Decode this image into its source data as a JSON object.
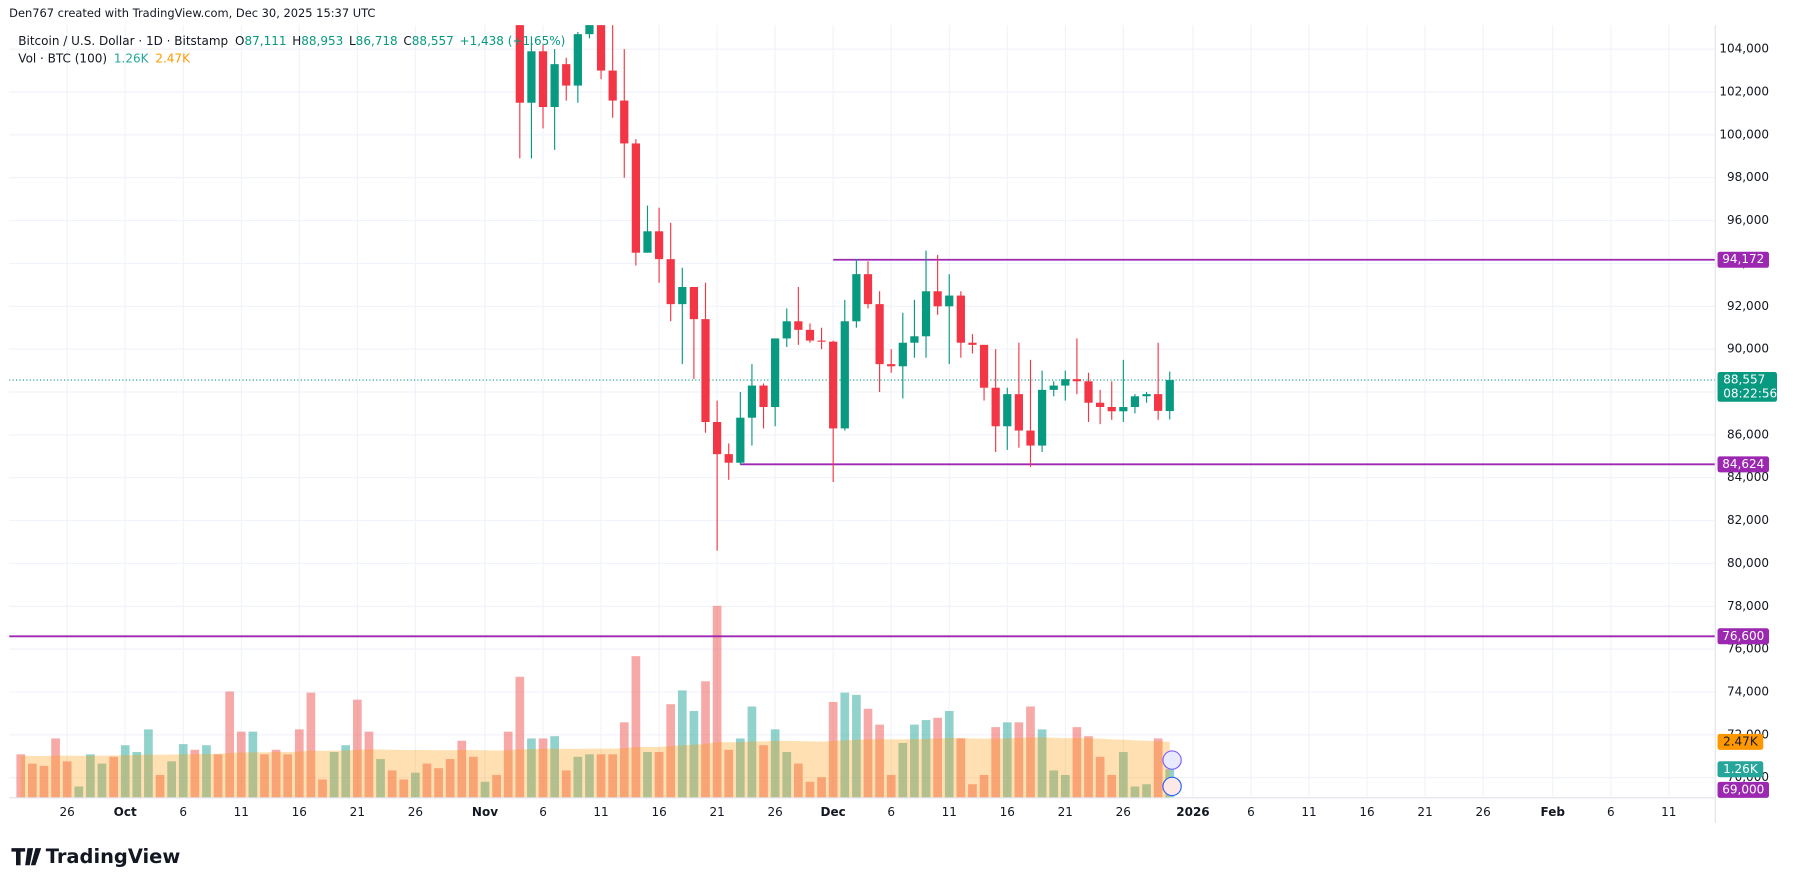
{
  "header": {
    "attribution": "Den767 created with TradingView.com, Dec 30, 2025 15:37 UTC",
    "symbol": "Bitcoin / U.S. Dollar · 1D · Bitstamp",
    "ohlc": [
      {
        "letter": "O",
        "value": "87,111"
      },
      {
        "letter": "H",
        "value": "88,953"
      },
      {
        "letter": "L",
        "value": "86,718"
      },
      {
        "letter": "C",
        "value": "88,557"
      }
    ],
    "change": "+1,438 (+1.65%)"
  },
  "chart_data": {
    "type": "candlestick",
    "up_color": "#089981",
    "down_color": "#f23645",
    "x": [
      "2025-11-04",
      "2025-11-05",
      "2025-11-06",
      "2025-11-07",
      "2025-11-08",
      "2025-11-09",
      "2025-11-10",
      "2025-11-11",
      "2025-11-12",
      "2025-11-13",
      "2025-11-14",
      "2025-11-15",
      "2025-11-16",
      "2025-11-17",
      "2025-11-18",
      "2025-11-19",
      "2025-11-20",
      "2025-11-21",
      "2025-11-22",
      "2025-11-23",
      "2025-11-24",
      "2025-11-25",
      "2025-11-26",
      "2025-11-27",
      "2025-11-28",
      "2025-11-29",
      "2025-11-30",
      "2025-12-01",
      "2025-12-02",
      "2025-12-03",
      "2025-12-04",
      "2025-12-05",
      "2025-12-06",
      "2025-12-07",
      "2025-12-08",
      "2025-12-09",
      "2025-12-10",
      "2025-12-11",
      "2025-12-12",
      "2025-12-13",
      "2025-12-14",
      "2025-12-15",
      "2025-12-16",
      "2025-12-17",
      "2025-12-18",
      "2025-12-19",
      "2025-12-20",
      "2025-12-21",
      "2025-12-22",
      "2025-12-23",
      "2025-12-24",
      "2025-12-25",
      "2025-12-26",
      "2025-12-27",
      "2025-12-28",
      "2025-12-29",
      "2025-12-30"
    ],
    "open": [
      106500,
      101500,
      103900,
      101300,
      103300,
      102300,
      104700,
      106000,
      103000,
      101600,
      99600,
      94500,
      95500,
      94200,
      92100,
      92900,
      91400,
      86600,
      85100,
      84700,
      86800,
      88300,
      87300,
      90500,
      91300,
      90900,
      90400,
      90350,
      86300,
      91300,
      93500,
      92100,
      89300,
      89200,
      90300,
      90600,
      92700,
      92000,
      92500,
      90300,
      90200,
      88200,
      86400,
      87900,
      86200,
      85500,
      88100,
      88300,
      88600,
      88500,
      87500,
      87300,
      87100,
      87300,
      87800,
      87900,
      87111
    ],
    "high": [
      106600,
      104600,
      104200,
      104000,
      103600,
      104800,
      106600,
      107000,
      105300,
      104000,
      99800,
      96700,
      96600,
      95900,
      93800,
      92900,
      93100,
      87600,
      85600,
      88000,
      89300,
      88400,
      90500,
      91900,
      92900,
      91200,
      91000,
      90400,
      92300,
      94200,
      94100,
      92700,
      90000,
      91700,
      92300,
      94600,
      94400,
      93500,
      92700,
      90700,
      90200,
      90000,
      88200,
      90300,
      89500,
      89000,
      88500,
      89000,
      90500,
      88900,
      88100,
      88500,
      89500,
      87900,
      88000,
      90300,
      88953
    ],
    "low": [
      98900,
      98900,
      100300,
      99300,
      101600,
      101500,
      104500,
      102600,
      100800,
      98000,
      93900,
      94500,
      93100,
      91300,
      89300,
      88600,
      86100,
      80600,
      83900,
      84600,
      85500,
      86300,
      86400,
      90100,
      90200,
      90300,
      90000,
      83800,
      86200,
      91000,
      91900,
      88000,
      88900,
      87700,
      89600,
      89600,
      91600,
      89300,
      89600,
      89800,
      87600,
      85200,
      85300,
      85400,
      84500,
      85200,
      87800,
      87600,
      87900,
      86600,
      86500,
      86700,
      86600,
      87000,
      87500,
      86700,
      86718
    ],
    "close": [
      101500,
      103900,
      101300,
      103300,
      102300,
      104700,
      106000,
      103000,
      101600,
      99600,
      94500,
      95500,
      94200,
      92100,
      92900,
      91400,
      86600,
      85100,
      84700,
      86800,
      88300,
      87300,
      90500,
      91300,
      90900,
      90400,
      90350,
      86300,
      91300,
      93500,
      92100,
      89300,
      89200,
      90300,
      90600,
      92700,
      92000,
      92500,
      90300,
      90200,
      88200,
      86400,
      87900,
      86200,
      85500,
      88100,
      88300,
      88600,
      88500,
      87500,
      87300,
      87100,
      87300,
      87800,
      87900,
      87119,
      88557
    ],
    "ylim": [
      69060,
      105120
    ],
    "yticks": [
      {
        "value": 70000,
        "label": "70,000"
      },
      {
        "value": 72000,
        "label": "72,000"
      },
      {
        "value": 74000,
        "label": "74,000"
      },
      {
        "value": 76000,
        "label": "76,000"
      },
      {
        "value": 78000,
        "label": "78,000"
      },
      {
        "value": 80000,
        "label": "80,000"
      },
      {
        "value": 82000,
        "label": "82,000"
      },
      {
        "value": 84000,
        "label": "84,000"
      },
      {
        "value": 86000,
        "label": "86,000"
      },
      {
        "value": 88000,
        "label": "88,000"
      },
      {
        "value": 90000,
        "label": "90,000"
      },
      {
        "value": 92000,
        "label": "92,000"
      },
      {
        "value": 94000,
        "label": "94,000"
      },
      {
        "value": 96000,
        "label": "96,000"
      },
      {
        "value": 98000,
        "label": "98,000"
      },
      {
        "value": 100000,
        "label": "100,000"
      },
      {
        "value": 102000,
        "label": "102,000"
      },
      {
        "value": 104000,
        "label": "104,000"
      }
    ],
    "xlim": [
      "2025-09-21",
      "2026-02-15"
    ],
    "xticks": [
      {
        "value": "2025-09-26",
        "label": "26"
      },
      {
        "value": "2025-10-01",
        "label": "Oct"
      },
      {
        "value": "2025-10-06",
        "label": "6"
      },
      {
        "value": "2025-10-11",
        "label": "11"
      },
      {
        "value": "2025-10-16",
        "label": "16"
      },
      {
        "value": "2025-10-21",
        "label": "21"
      },
      {
        "value": "2025-10-26",
        "label": "26"
      },
      {
        "value": "2025-11-01",
        "label": "Nov"
      },
      {
        "value": "2025-11-06",
        "label": "6"
      },
      {
        "value": "2025-11-11",
        "label": "11"
      },
      {
        "value": "2025-11-16",
        "label": "16"
      },
      {
        "value": "2025-11-21",
        "label": "21"
      },
      {
        "value": "2025-11-26",
        "label": "26"
      },
      {
        "value": "2025-12-01",
        "label": "Dec"
      },
      {
        "value": "2025-12-06",
        "label": "6"
      },
      {
        "value": "2025-12-11",
        "label": "11"
      },
      {
        "value": "2025-12-16",
        "label": "16"
      },
      {
        "value": "2025-12-21",
        "label": "21"
      },
      {
        "value": "2025-12-26",
        "label": "26"
      },
      {
        "value": "2026-01-01",
        "label": "2026"
      },
      {
        "value": "2026-01-06",
        "label": "6"
      },
      {
        "value": "2026-01-11",
        "label": "11"
      },
      {
        "value": "2026-01-16",
        "label": "16"
      },
      {
        "value": "2026-01-21",
        "label": "21"
      },
      {
        "value": "2026-01-26",
        "label": "26"
      },
      {
        "value": "2026-02-01",
        "label": "Feb"
      },
      {
        "value": "2026-02-06",
        "label": "6"
      },
      {
        "value": "2026-02-11",
        "label": "11"
      }
    ],
    "grid": true,
    "levels": [
      {
        "value": 94172,
        "label": "94,172",
        "from": "2025-12-01",
        "color": "#9c27b0"
      },
      {
        "value": 84624,
        "label": "84,624",
        "from": "2025-11-23",
        "color": "#9c27b0"
      },
      {
        "value": 76600,
        "label": "76,600",
        "from": "2025-09-21",
        "color": "#9c27b0"
      },
      {
        "value": 69000,
        "label": "69,000",
        "from": "2025-09-21",
        "color": "#9c27b0"
      }
    ],
    "last_price": {
      "value": 88557,
      "label": "88,557",
      "countdown": "08:22:56",
      "color": "#089981"
    },
    "volume": {
      "name": "Vol · BTC (100)",
      "value_label": "1.26K",
      "x": [
        "2025-09-22",
        "2025-09-23",
        "2025-09-24",
        "2025-09-25",
        "2025-09-26",
        "2025-09-27",
        "2025-09-28",
        "2025-09-29",
        "2025-09-30",
        "2025-10-01",
        "2025-10-02",
        "2025-10-03",
        "2025-10-04",
        "2025-10-05",
        "2025-10-06",
        "2025-10-07",
        "2025-10-08",
        "2025-10-09",
        "2025-10-10",
        "2025-10-11",
        "2025-10-12",
        "2025-10-13",
        "2025-10-14",
        "2025-10-15",
        "2025-10-16",
        "2025-10-17",
        "2025-10-18",
        "2025-10-19",
        "2025-10-20",
        "2025-10-21",
        "2025-10-22",
        "2025-10-23",
        "2025-10-24",
        "2025-10-25",
        "2025-10-26",
        "2025-10-27",
        "2025-10-28",
        "2025-10-29",
        "2025-10-30",
        "2025-10-31",
        "2025-11-01",
        "2025-11-02",
        "2025-11-03",
        "2025-11-04",
        "2025-11-05",
        "2025-11-06",
        "2025-11-07",
        "2025-11-08",
        "2025-11-09",
        "2025-11-10",
        "2025-11-11",
        "2025-11-12",
        "2025-11-13",
        "2025-11-14",
        "2025-11-15",
        "2025-11-16",
        "2025-11-17",
        "2025-11-18",
        "2025-11-19",
        "2025-11-20",
        "2025-11-21",
        "2025-11-22",
        "2025-11-23",
        "2025-11-24",
        "2025-11-25",
        "2025-11-26",
        "2025-11-27",
        "2025-11-28",
        "2025-11-29",
        "2025-11-30",
        "2025-12-01",
        "2025-12-02",
        "2025-12-03",
        "2025-12-04",
        "2025-12-05",
        "2025-12-06",
        "2025-12-07",
        "2025-12-08",
        "2025-12-09",
        "2025-12-10",
        "2025-12-11",
        "2025-12-12",
        "2025-12-13",
        "2025-12-14",
        "2025-12-15",
        "2025-12-16",
        "2025-12-17",
        "2025-12-18",
        "2025-12-19",
        "2025-12-20",
        "2025-12-21",
        "2025-12-22",
        "2025-12-23",
        "2025-12-24",
        "2025-12-25",
        "2025-12-26",
        "2025-12-27",
        "2025-12-28",
        "2025-12-29",
        "2025-12-30"
      ],
      "values": [
        1920,
        1510,
        1410,
        2620,
        1610,
        500,
        1920,
        1510,
        1810,
        2320,
        2020,
        3020,
        1010,
        1610,
        2370,
        2120,
        2320,
        1920,
        4690,
        2920,
        2920,
        1920,
        2120,
        1920,
        3020,
        4640,
        810,
        2020,
        2320,
        4330,
        2920,
        1710,
        1210,
        810,
        1110,
        1510,
        1310,
        1710,
        2520,
        1810,
        710,
        1010,
        2920,
        5340,
        2620,
        2620,
        2720,
        1210,
        1810,
        1920,
        1920,
        1920,
        3330,
        6250,
        2020,
        2020,
        4130,
        4740,
        3830,
        5140,
        8470,
        2120,
        2620,
        4030,
        2320,
        3020,
        2020,
        1510,
        710,
        910,
        4230,
        4640,
        4540,
        3930,
        3230,
        1010,
        2420,
        3230,
        3430,
        3530,
        3830,
        2620,
        600,
        1010,
        3120,
        3330,
        3330,
        4030,
        3020,
        1210,
        1010,
        3120,
        2720,
        1810,
        1010,
        2020,
        500,
        600,
        2620,
        1260
      ],
      "colors": [
        "#ef5350",
        "#ef5350",
        "#ef5350",
        "#ef5350",
        "#ef5350",
        "#26a69a",
        "#26a69a",
        "#26a69a",
        "#ef5350",
        "#26a69a",
        "#26a69a",
        "#26a69a",
        "#ef5350",
        "#26a69a",
        "#26a69a",
        "#ef5350",
        "#26a69a",
        "#ef5350",
        "#ef5350",
        "#ef5350",
        "#26a69a",
        "#ef5350",
        "#ef5350",
        "#ef5350",
        "#ef5350",
        "#ef5350",
        "#ef5350",
        "#26a69a",
        "#26a69a",
        "#ef5350",
        "#ef5350",
        "#26a69a",
        "#ef5350",
        "#ef5350",
        "#26a69a",
        "#ef5350",
        "#ef5350",
        "#ef5350",
        "#ef5350",
        "#ef5350",
        "#26a69a",
        "#ef5350",
        "#ef5350",
        "#ef5350",
        "#26a69a",
        "#ef5350",
        "#26a69a",
        "#ef5350",
        "#26a69a",
        "#26a69a",
        "#ef5350",
        "#ef5350",
        "#ef5350",
        "#ef5350",
        "#26a69a",
        "#ef5350",
        "#ef5350",
        "#26a69a",
        "#26a69a",
        "#ef5350",
        "#ef5350",
        "#ef5350",
        "#26a69a",
        "#26a69a",
        "#ef5350",
        "#26a69a",
        "#26a69a",
        "#ef5350",
        "#ef5350",
        "#ef5350",
        "#ef5350",
        "#26a69a",
        "#26a69a",
        "#ef5350",
        "#ef5350",
        "#ef5350",
        "#26a69a",
        "#26a69a",
        "#26a69a",
        "#ef5350",
        "#26a69a",
        "#ef5350",
        "#ef5350",
        "#ef5350",
        "#ef5350",
        "#26a69a",
        "#ef5350",
        "#ef5350",
        "#26a69a",
        "#26a69a",
        "#26a69a",
        "#ef5350",
        "#ef5350",
        "#ef5350",
        "#ef5350",
        "#26a69a",
        "#26a69a",
        "#26a69a",
        "#ef5350",
        "#26a69a"
      ],
      "ma": {
        "value_label": "2.47K",
        "color": "#ff9800",
        "values": [
          1850,
          1850,
          1840,
          1860,
          1860,
          1850,
          1860,
          1860,
          1870,
          1880,
          1890,
          1910,
          1900,
          1910,
          1920,
          1930,
          1940,
          1940,
          1980,
          2000,
          2010,
          2010,
          2020,
          2020,
          2040,
          2080,
          2070,
          2080,
          2090,
          2120,
          2130,
          2130,
          2120,
          2110,
          2110,
          2110,
          2100,
          2100,
          2110,
          2110,
          2100,
          2090,
          2100,
          2140,
          2150,
          2160,
          2170,
          2160,
          2160,
          2170,
          2170,
          2170,
          2190,
          2240,
          2240,
          2250,
          2280,
          2320,
          2340,
          2380,
          2450,
          2450,
          2460,
          2490,
          2490,
          2510,
          2510,
          2500,
          2490,
          2480,
          2510,
          2540,
          2560,
          2580,
          2590,
          2580,
          2580,
          2590,
          2600,
          2620,
          2640,
          2640,
          2620,
          2610,
          2620,
          2630,
          2640,
          2660,
          2670,
          2650,
          2630,
          2640,
          2630,
          2610,
          2580,
          2570,
          2540,
          2520,
          2490,
          2470
        ]
      }
    }
  },
  "logo": "TradingView"
}
